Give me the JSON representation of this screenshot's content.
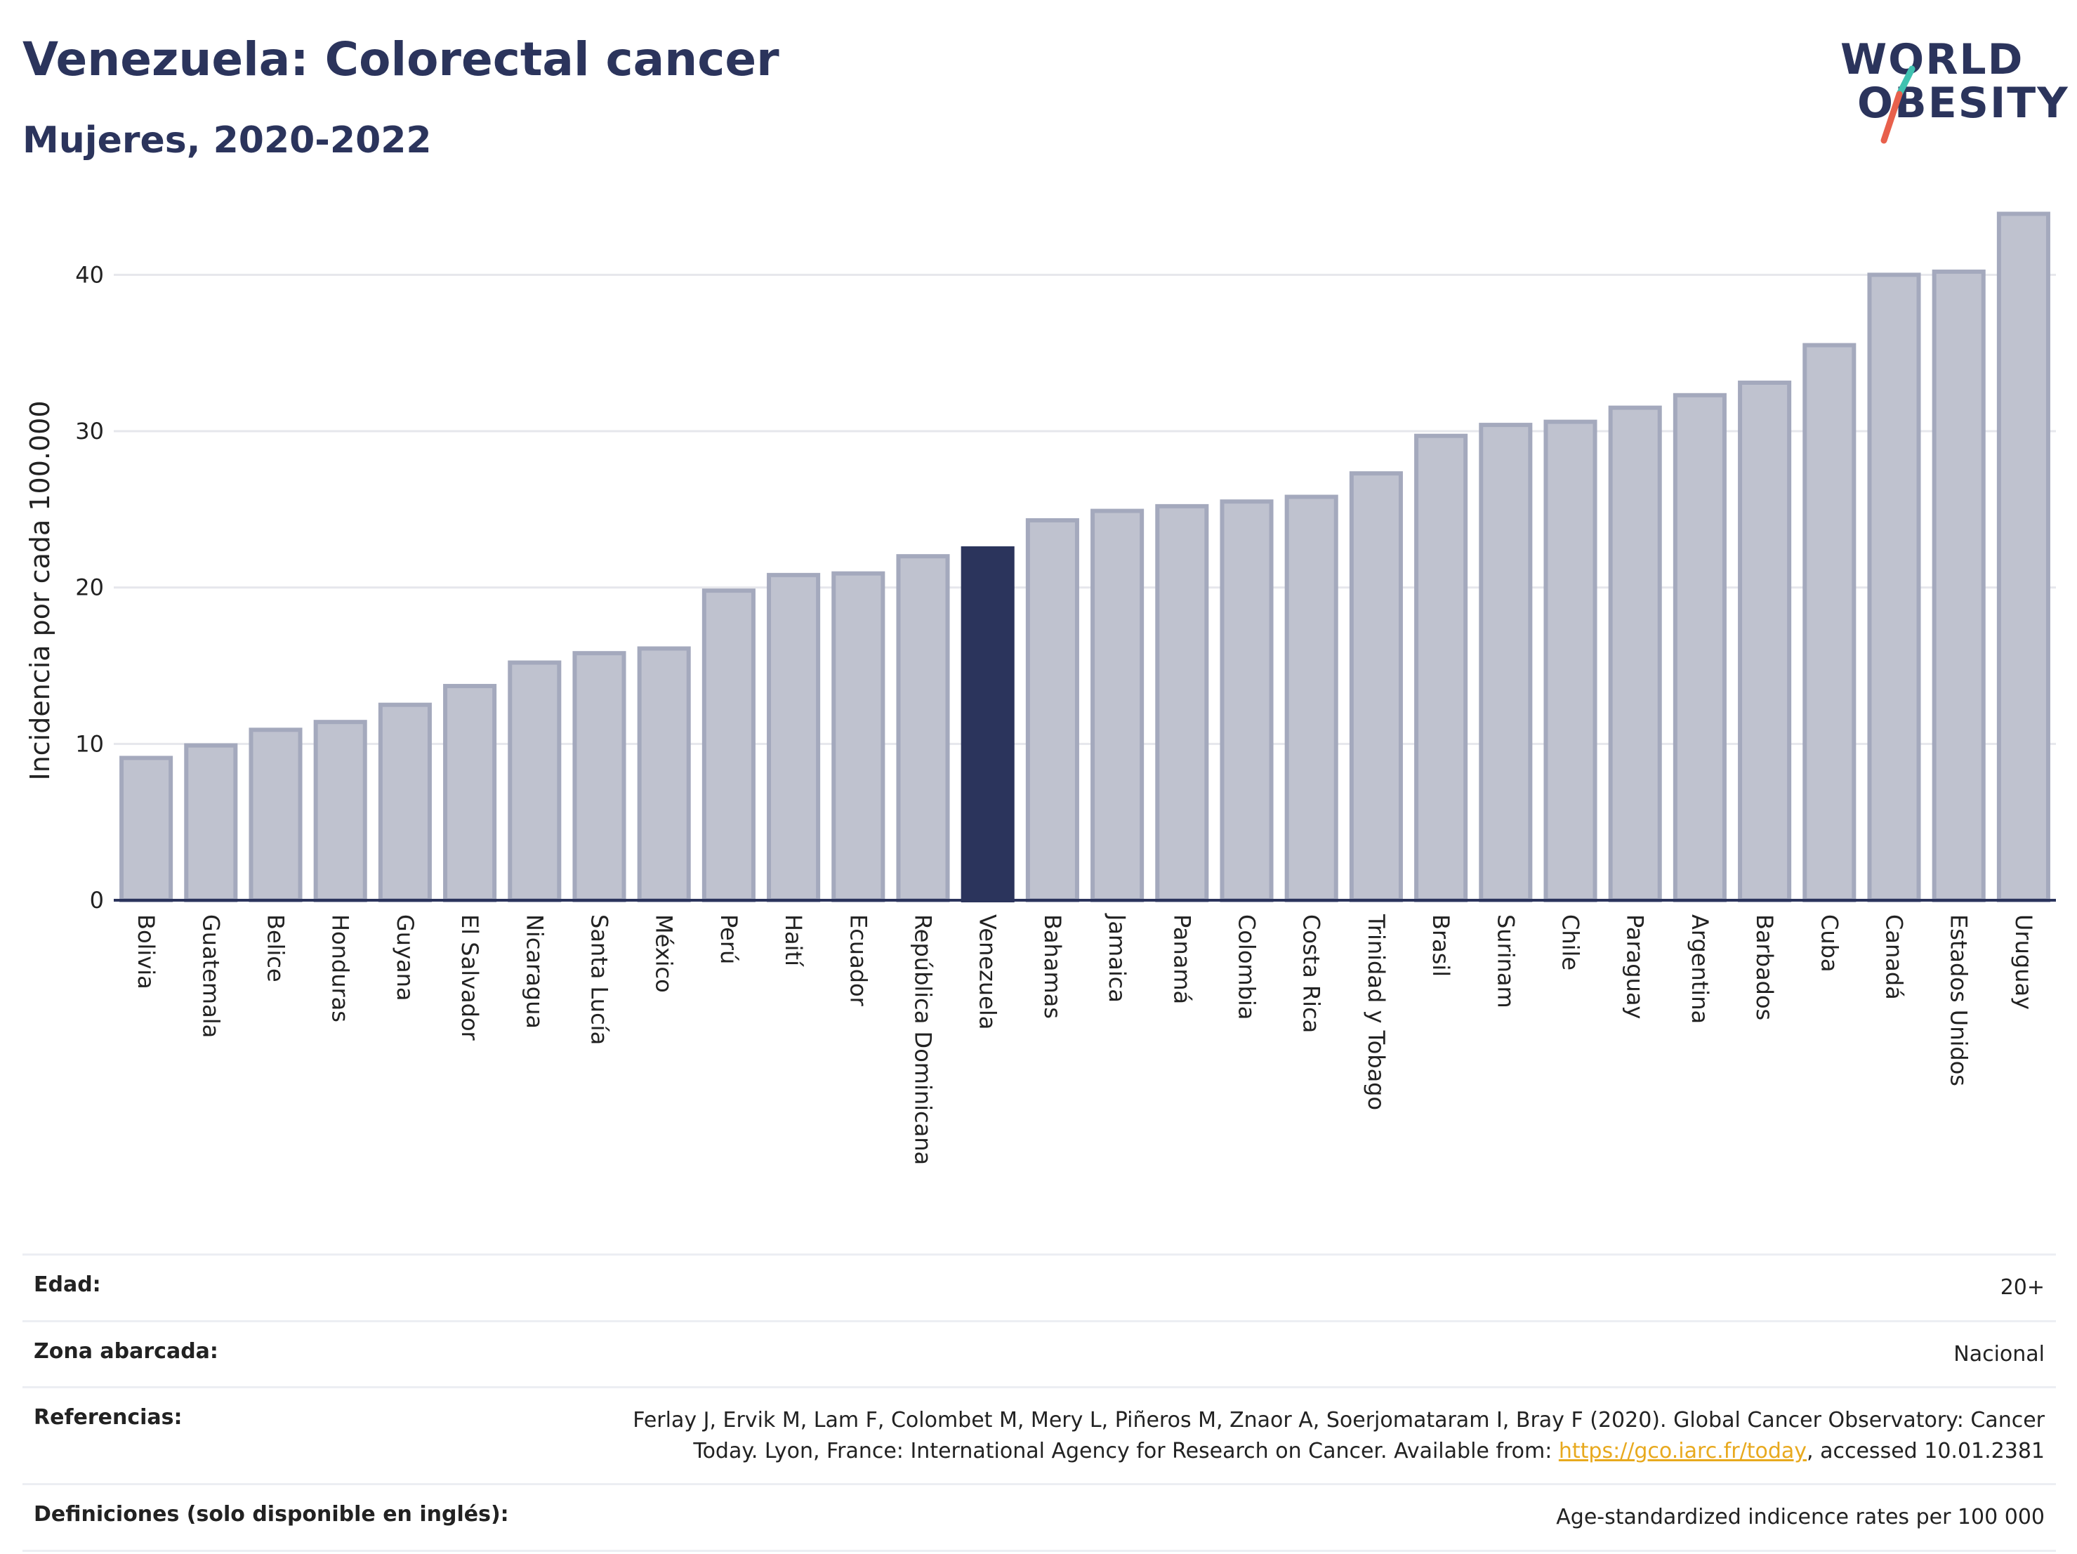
{
  "header": {
    "title": "Venezuela: Colorectal cancer",
    "subtitle": "Mujeres, 2020-2022"
  },
  "logo": {
    "line1": "WORLD",
    "line2": "OBESITY",
    "colors": {
      "slash_top": "#3fc1b0",
      "slash_bottom": "#e8604c"
    }
  },
  "colors": {
    "bar": "#bfc2cf",
    "bar_edge": "#a4a9bd",
    "highlight": "#2b345c",
    "grid": "#e6e7ec"
  },
  "chart_data": {
    "type": "bar",
    "title": "",
    "ylabel": "Incidencia por cada 100.000",
    "xlabel": "",
    "ylim": [
      0,
      45
    ],
    "yticks": [
      0,
      10,
      20,
      30,
      40
    ],
    "grid": true,
    "highlight": "Venezuela",
    "categories": [
      "Bolivia",
      "Guatemala",
      "Belice",
      "Honduras",
      "Guyana",
      "El Salvador",
      "Nicaragua",
      "Santa Lucía",
      "México",
      "Perú",
      "Haití",
      "Ecuador",
      "República Dominicana",
      "Venezuela",
      "Bahamas",
      "Jamaica",
      "Panamá",
      "Colombia",
      "Costa Rica",
      "Trinidad y Tobago",
      "Brasil",
      "Surinam",
      "Chile",
      "Paraguay",
      "Argentina",
      "Barbados",
      "Cuba",
      "Canadá",
      "Estados Unidos",
      "Uruguay"
    ],
    "values": [
      9.1,
      9.9,
      10.9,
      11.4,
      12.5,
      13.7,
      15.2,
      15.8,
      16.1,
      19.8,
      20.8,
      20.9,
      22.0,
      22.5,
      24.3,
      24.9,
      25.2,
      25.5,
      25.8,
      27.3,
      29.7,
      30.4,
      30.6,
      31.5,
      32.3,
      33.1,
      35.5,
      40.0,
      40.2,
      43.9
    ]
  },
  "metadata": {
    "rows": [
      {
        "label": "Edad:",
        "value": "20+"
      },
      {
        "label": "Zona abarcada:",
        "value": "Nacional"
      },
      {
        "label": "Referencias:",
        "value_line1": "Ferlay J, Ervik M, Lam F, Colombet M, Mery L, Piñeros M, Znaor A, Soerjomataram I, Bray F (2020). Global Cancer Observatory: Cancer",
        "value_line2_pre": "Today. Lyon, France: International Agency for Research on Cancer. Available from: ",
        "link_text": "https://gco.iarc.fr/today",
        "value_line2_post": ", accessed 10.01.2381"
      },
      {
        "label": "Definiciones (solo disponible en inglés):",
        "value": "Age-standardized indicence rates per 100 000"
      }
    ]
  }
}
